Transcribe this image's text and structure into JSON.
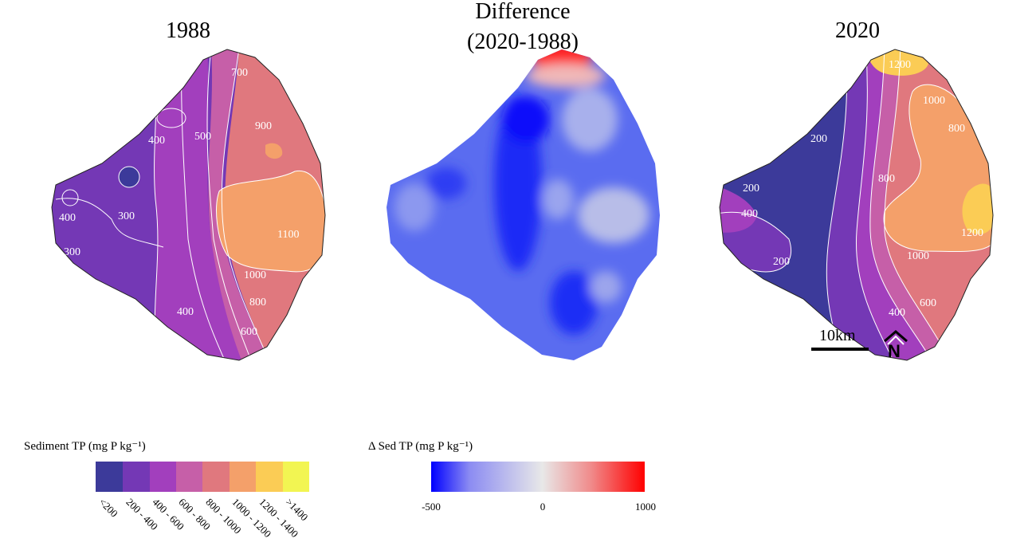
{
  "panels": {
    "left_title": "1988",
    "middle_title_line1": "Difference",
    "middle_title_line2": "(2020-1988)",
    "right_title": "2020"
  },
  "contour_labels_1988": [
    "700",
    "900",
    "500",
    "400",
    "300",
    "400",
    "300",
    "1100",
    "1000",
    "800",
    "400",
    "600"
  ],
  "contour_labels_2020": [
    "1200",
    "1000",
    "800",
    "200",
    "800",
    "200",
    "400",
    "1200",
    "1000",
    "200",
    "600",
    "400"
  ],
  "scale_bar": {
    "label": "10km"
  },
  "north_arrow": {
    "label": "N"
  },
  "legend_tp": {
    "title": "Sediment TP (mg P kg⁻¹)",
    "categories": [
      "<200",
      "200 - 400",
      "400 - 600",
      "600 - 800",
      "800 - 1000",
      "1000 - 1200",
      "1200 - 1400",
      ">1400"
    ],
    "colors": [
      "#3c3a9a",
      "#7438b5",
      "#a23fbd",
      "#c65fa8",
      "#e0787e",
      "#f4a06a",
      "#fbcc55",
      "#f2f552"
    ]
  },
  "legend_diff": {
    "title": "Δ Sed TP (mg P kg⁻¹)",
    "ticks": [
      "-500",
      "0",
      "1000"
    ],
    "colors": {
      "low": "#0000ff",
      "mid": "#e8e8e8",
      "high": "#ff0000"
    }
  }
}
